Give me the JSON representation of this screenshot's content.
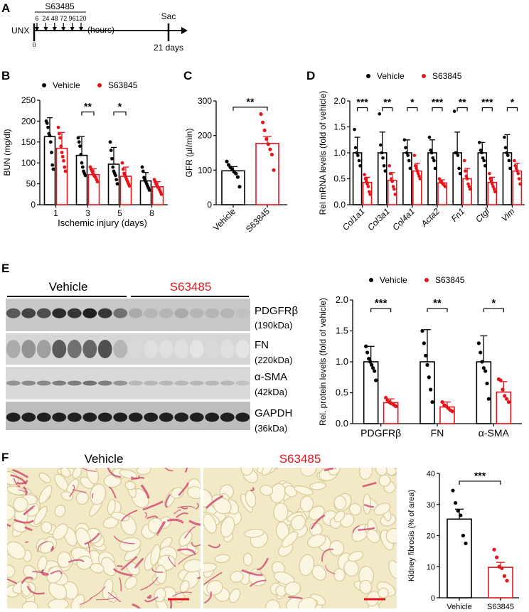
{
  "panels": {
    "A": {
      "letter": "A",
      "drug_label": "S63485",
      "time_points": [
        "6",
        "24",
        "48",
        "72",
        "96",
        "120"
      ],
      "hours_label": "(hours)",
      "unx_label": "UNX",
      "zero_label": "0",
      "sac_label": "Sac",
      "end_label": "21 days"
    },
    "B": {
      "letter": "B",
      "legend": [
        "Vehicle",
        "S63845"
      ]
    },
    "C": {
      "letter": "C"
    },
    "D": {
      "letter": "D",
      "legend": [
        "Vehicle",
        "S63845"
      ]
    },
    "E": {
      "letter": "E",
      "group_vehicle": "Vehicle",
      "group_drug": "S63485",
      "bands": [
        {
          "name": "PDGFRβ",
          "kda": "(190kDa)"
        },
        {
          "name": "FN",
          "kda": "(220kDa)"
        },
        {
          "name": "α-SMA",
          "kda": "(42kDa)"
        },
        {
          "name": "GAPDH",
          "kda": "(36kDa)"
        }
      ],
      "legend": [
        "Vehicle",
        "S63845"
      ]
    },
    "F": {
      "letter": "F",
      "image_vehicle_title": "Vehicle",
      "image_drug_title": "S63485"
    }
  },
  "colors": {
    "vehicle": "#000000",
    "drug": "#e8141b",
    "drug_title": "#e8141b"
  },
  "chart_data": [
    {
      "id": "B",
      "type": "bar",
      "ylabel": "BUN (mg/dl)",
      "xlabel": "Ischemic injury (days)",
      "categories": [
        "1",
        "3",
        "5",
        "8"
      ],
      "yticks": [
        0,
        50,
        100,
        150,
        200,
        250
      ],
      "ylim": [
        0,
        250
      ],
      "grid": false,
      "series": [
        {
          "name": "Vehicle",
          "values": [
            163,
            118,
            97,
            57
          ],
          "errors": [
            45,
            45,
            40,
            20
          ],
          "points": [
            [
              200,
              195,
              185,
              170,
              165,
              150,
              125,
              95,
              85
            ],
            [
              160,
              150,
              140,
              120,
              100,
              90,
              80,
              75,
              70
            ],
            [
              150,
              130,
              110,
              90,
              80,
              75,
              70,
              60,
              50
            ],
            [
              90,
              80,
              65,
              60,
              55,
              50,
              45,
              40,
              35
            ]
          ]
        },
        {
          "name": "S63845",
          "values": [
            135,
            72,
            68,
            43
          ],
          "errors": [
            38,
            14,
            22,
            12
          ],
          "points": [
            [
              185,
              170,
              160,
              140,
              125,
              115,
              105,
              90,
              80
            ],
            [
              90,
              85,
              80,
              75,
              70,
              68,
              65,
              60,
              55
            ],
            [
              100,
              85,
              75,
              70,
              65,
              60,
              55,
              50,
              45
            ],
            [
              60,
              55,
              50,
              45,
              42,
              40,
              35,
              30,
              25
            ]
          ]
        }
      ],
      "significance": [
        {
          "category": "3",
          "label": "**"
        },
        {
          "category": "5",
          "label": "*"
        }
      ]
    },
    {
      "id": "C",
      "type": "bar",
      "ylabel": "GFR (μl/min)",
      "categories": [
        "Vehicle",
        "S63845"
      ],
      "yticks": [
        0,
        100,
        200,
        300
      ],
      "ylim": [
        0,
        300
      ],
      "grid": false,
      "values": [
        98,
        177
      ],
      "errors": [
        12,
        20
      ],
      "points": [
        [
          125,
          115,
          108,
          102,
          95,
          90,
          80,
          52
        ],
        [
          262,
          238,
          215,
          190,
          175,
          160,
          145,
          100
        ]
      ],
      "significance": [
        {
          "label": "**"
        }
      ]
    },
    {
      "id": "D",
      "type": "bar",
      "ylabel": "Rel mRNA levels (fold of vehicle)",
      "categories": [
        "Col1a1",
        "Col3a1",
        "Col4a1",
        "Acta2",
        "Fn1",
        "Ctgf",
        "Vim"
      ],
      "yticks": [
        0.0,
        0.5,
        1.0,
        1.5,
        2.0
      ],
      "ylim": [
        0,
        2.0
      ],
      "grid": false,
      "series": [
        {
          "name": "Vehicle",
          "values": [
            1.0,
            1.0,
            1.0,
            1.0,
            1.0,
            1.0,
            1.0
          ],
          "errors": [
            0.3,
            0.4,
            0.25,
            0.25,
            0.4,
            0.2,
            0.35
          ],
          "points": [
            [
              1.45,
              1.1,
              1.0,
              0.95,
              0.85,
              0.75
            ],
            [
              1.75,
              1.15,
              1.0,
              0.9,
              0.75,
              0.65
            ],
            [
              1.25,
              1.1,
              1.0,
              0.95,
              0.85,
              0.7
            ],
            [
              1.3,
              1.05,
              1.0,
              0.9,
              0.85,
              0.7
            ],
            [
              1.8,
              1.0,
              1.0,
              0.95,
              0.7,
              0.6
            ],
            [
              1.2,
              1.05,
              1.0,
              0.9,
              0.85,
              0.75
            ],
            [
              1.3,
              1.1,
              1.0,
              0.95,
              0.85,
              0.7
            ]
          ]
        },
        {
          "name": "S63845",
          "values": [
            0.43,
            0.47,
            0.65,
            0.42,
            0.5,
            0.43,
            0.65
          ],
          "errors": [
            0.1,
            0.15,
            0.15,
            0.06,
            0.2,
            0.1,
            0.15
          ],
          "points": [
            [
              0.58,
              0.5,
              0.45,
              0.4,
              0.35,
              0.25,
              0.2
            ],
            [
              0.75,
              0.6,
              0.5,
              0.45,
              0.35,
              0.3,
              0.2
            ],
            [
              0.95,
              0.75,
              0.7,
              0.65,
              0.6,
              0.55,
              0.5
            ],
            [
              0.5,
              0.45,
              0.43,
              0.4,
              0.38,
              0.35
            ],
            [
              0.85,
              0.65,
              0.55,
              0.5,
              0.4,
              0.35,
              0.3
            ],
            [
              0.6,
              0.5,
              0.45,
              0.4,
              0.35,
              0.3,
              0.25
            ],
            [
              0.85,
              0.75,
              0.7,
              0.65,
              0.6,
              0.5,
              0.4
            ]
          ]
        }
      ],
      "significance": [
        "***",
        "**",
        "*",
        "***",
        "**",
        "***",
        "*"
      ]
    },
    {
      "id": "E",
      "type": "bar",
      "ylabel": "Rel. protein levels (fold of vehicle)",
      "categories": [
        "PDGFRβ",
        "FN",
        "α-SMA"
      ],
      "yticks": [
        0.0,
        0.5,
        1.0,
        1.5,
        2.0
      ],
      "ylim": [
        0,
        2.0
      ],
      "grid": false,
      "series": [
        {
          "name": "Vehicle",
          "values": [
            1.0,
            1.0,
            1.0
          ],
          "errors": [
            0.25,
            0.52,
            0.42
          ],
          "points": [
            [
              1.25,
              1.15,
              1.05,
              1.0,
              0.95,
              0.9,
              0.85,
              0.7
            ],
            [
              1.5,
              1.3,
              1.1,
              0.95,
              0.75,
              0.55,
              0.35
            ],
            [
              1.3,
              1.15,
              1.0,
              0.9,
              0.85,
              0.65,
              0.4
            ]
          ]
        },
        {
          "name": "S63845",
          "values": [
            0.34,
            0.27,
            0.51
          ],
          "errors": [
            0.06,
            0.08,
            0.17
          ],
          "points": [
            [
              0.42,
              0.38,
              0.35,
              0.33,
              0.32,
              0.3,
              0.28
            ],
            [
              0.35,
              0.3,
              0.28,
              0.25,
              0.22,
              0.2
            ],
            [
              0.72,
              0.7,
              0.55,
              0.45,
              0.4,
              0.35
            ]
          ]
        }
      ],
      "significance": [
        "***",
        "**",
        "*"
      ]
    },
    {
      "id": "F",
      "type": "bar",
      "ylabel": "Kidney fibrosis (% of area)",
      "categories": [
        "Vehicle",
        "S63845"
      ],
      "yticks": [
        0,
        10,
        20,
        30,
        40
      ],
      "ylim": [
        0,
        40
      ],
      "grid": false,
      "values": [
        25.3,
        9.8
      ],
      "errors": [
        3.2,
        1.6
      ],
      "points": [
        [
          34.5,
          30.5,
          28,
          26.5,
          20,
          17.5
        ],
        [
          15.5,
          13,
          10,
          9.5,
          7,
          5.5
        ]
      ],
      "significance": [
        {
          "label": "***"
        }
      ]
    }
  ]
}
